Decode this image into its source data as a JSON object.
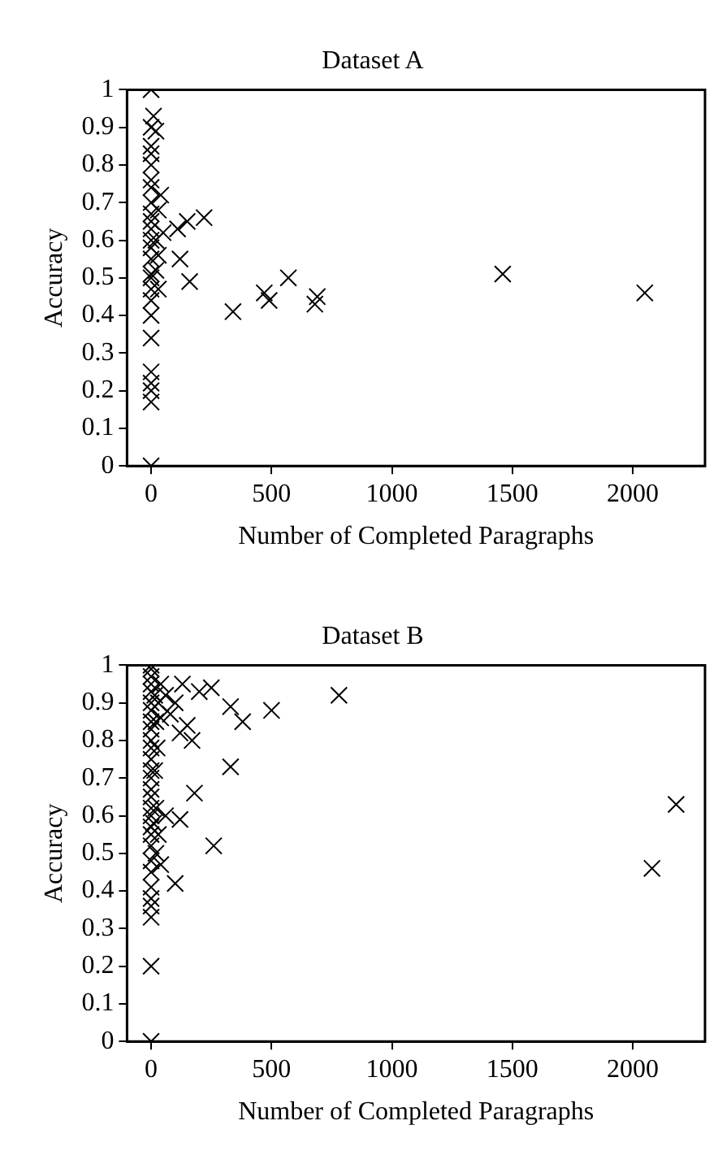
{
  "chart_data": [
    {
      "type": "scatter",
      "title": "Dataset A",
      "xlabel": "Number of Completed Paragraphs",
      "ylabel": "Accuracy",
      "marker": "cross",
      "grid": false,
      "legend": false,
      "xlim": [
        -100,
        2300
      ],
      "xticks": [
        0,
        500,
        1000,
        1500,
        2000
      ],
      "ylim": [
        0,
        1
      ],
      "yticks": [
        0,
        0.1,
        0.2,
        0.3,
        0.4,
        0.5,
        0.6,
        0.7,
        0.8,
        0.9,
        1
      ],
      "series": [
        {
          "color": "#000000",
          "x": [
            1460,
            2050,
            340,
            470,
            490,
            570,
            680,
            690,
            160,
            220,
            150,
            110,
            120,
            40,
            30,
            50,
            20,
            30,
            20,
            30,
            10,
            20,
            0,
            0,
            0,
            0,
            0,
            0,
            0,
            0,
            0,
            0,
            0,
            0,
            0,
            0,
            0,
            0,
            0,
            0,
            0,
            0,
            0,
            0,
            0,
            0,
            0
          ],
          "values": [
            0.51,
            0.46,
            0.41,
            0.46,
            0.44,
            0.5,
            0.43,
            0.45,
            0.49,
            0.66,
            0.65,
            0.63,
            0.55,
            0.72,
            0.68,
            0.62,
            0.6,
            0.56,
            0.52,
            0.47,
            0.93,
            0.89,
            1,
            0.9,
            0.85,
            0.83,
            0.8,
            0.76,
            0.74,
            0.7,
            0.67,
            0.65,
            0.63,
            0.6,
            0.58,
            0.55,
            0.51,
            0.5,
            0.47,
            0.44,
            0.4,
            0.34,
            0.25,
            0.22,
            0.2,
            0.17,
            0
          ]
        }
      ]
    },
    {
      "type": "scatter",
      "title": "Dataset B",
      "xlabel": "Number of Completed Paragraphs",
      "ylabel": "Accuracy",
      "marker": "cross",
      "grid": false,
      "legend": false,
      "xlim": [
        -100,
        2300
      ],
      "xticks": [
        0,
        500,
        1000,
        1500,
        2000
      ],
      "ylim": [
        0,
        1
      ],
      "yticks": [
        0,
        0.1,
        0.2,
        0.3,
        0.4,
        0.5,
        0.6,
        0.7,
        0.8,
        0.9,
        1
      ],
      "series": [
        {
          "color": "#000000",
          "x": [
            780,
            2080,
            2180,
            500,
            380,
            330,
            330,
            250,
            260,
            180,
            120,
            100,
            170,
            150,
            120,
            100,
            200,
            130,
            80,
            60,
            40,
            60,
            40,
            30,
            20,
            15,
            20,
            25,
            15,
            20,
            10,
            30,
            40,
            0,
            0,
            0,
            0,
            0,
            0,
            0,
            0,
            0,
            0,
            0,
            0,
            0,
            0,
            0,
            0,
            0,
            0,
            0,
            0,
            0,
            0,
            0,
            0,
            0,
            0,
            0,
            0,
            0
          ],
          "values": [
            0.92,
            0.46,
            0.63,
            0.88,
            0.85,
            0.89,
            0.73,
            0.94,
            0.52,
            0.66,
            0.59,
            0.42,
            0.8,
            0.84,
            0.82,
            0.9,
            0.93,
            0.95,
            0.87,
            0.92,
            0.95,
            0.6,
            0.47,
            0.55,
            0.5,
            0.92,
            0.85,
            0.78,
            0.72,
            0.62,
            0.58,
            0.9,
            0.86,
            1,
            0.99,
            0.97,
            0.95,
            0.93,
            0.9,
            0.88,
            0.85,
            0.83,
            0.8,
            0.78,
            0.75,
            0.72,
            0.7,
            0.67,
            0.65,
            0.62,
            0.6,
            0.57,
            0.55,
            0.52,
            0.48,
            0.45,
            0.41,
            0.38,
            0.36,
            0.33,
            0.2,
            0
          ]
        }
      ]
    }
  ]
}
